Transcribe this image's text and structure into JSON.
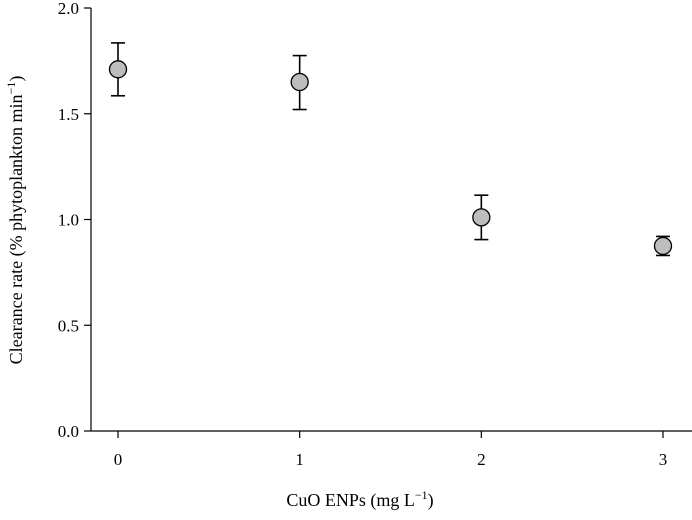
{
  "chart_data": {
    "type": "scatter",
    "title": "",
    "xlabel": "CuO ENPs (mg L",
    "xlabel_sup": "−1",
    "xlabel_end": ")",
    "ylabel": "Clearance rate (% phytoplankton min",
    "ylabel_sup": "−1",
    "ylabel_end": ")",
    "xlim": [
      -0.15,
      3.15
    ],
    "ylim": [
      0.0,
      2.0
    ],
    "xticks": [
      0,
      1,
      2,
      3
    ],
    "xtick_labels": [
      "0",
      "1",
      "2",
      "3"
    ],
    "yticks": [
      0.0,
      0.5,
      1.0,
      1.5,
      2.0
    ],
    "ytick_labels": [
      "0.0",
      "0.5",
      "1.0",
      "1.5",
      "2.0"
    ],
    "grid": false,
    "series": [
      {
        "x": [
          0,
          1,
          2,
          3
        ],
        "y": [
          1.71,
          1.65,
          1.01,
          0.875
        ],
        "err_low": [
          1.585,
          1.52,
          0.905,
          0.83
        ],
        "err_high": [
          1.835,
          1.775,
          1.115,
          0.92
        ]
      }
    ],
    "marker_color": "#bdbdbd"
  }
}
